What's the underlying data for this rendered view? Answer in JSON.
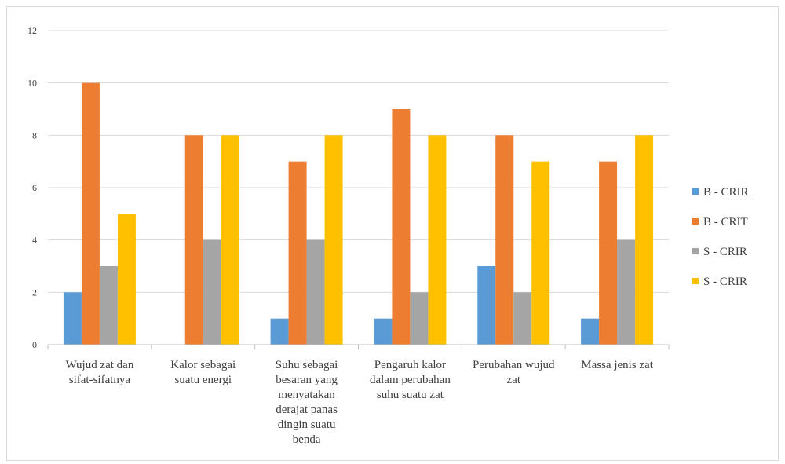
{
  "chart_data": {
    "type": "bar",
    "categories": [
      [
        "Wujud zat dan",
        "sifat-sifatnya"
      ],
      [
        "Kalor sebagai",
        "suatu energi"
      ],
      [
        "Suhu sebagai",
        "besaran yang",
        "menyatakan",
        "derajat panas",
        "dingin suatu",
        "benda"
      ],
      [
        "Pengaruh kalor",
        "dalam perubahan",
        "suhu suatu zat"
      ],
      [
        "Perubahan wujud",
        "zat"
      ],
      [
        "Massa jenis zat"
      ]
    ],
    "series": [
      {
        "name": "B - CRIR",
        "color": "#5b9bd5",
        "values": [
          2,
          0,
          1,
          1,
          3,
          1
        ]
      },
      {
        "name": "B - CRIT",
        "color": "#ed7d31",
        "values": [
          10,
          8,
          7,
          9,
          8,
          7
        ]
      },
      {
        "name": "S - CRIR",
        "color": "#a5a5a5",
        "values": [
          3,
          4,
          4,
          2,
          2,
          4
        ]
      },
      {
        "name": "S - CRIR",
        "color": "#ffc000",
        "values": [
          5,
          8,
          8,
          8,
          7,
          8
        ]
      }
    ],
    "yticks": [
      0,
      2,
      4,
      6,
      8,
      10,
      12
    ],
    "ylim": [
      0,
      12
    ],
    "grid": true,
    "legend": "right"
  }
}
